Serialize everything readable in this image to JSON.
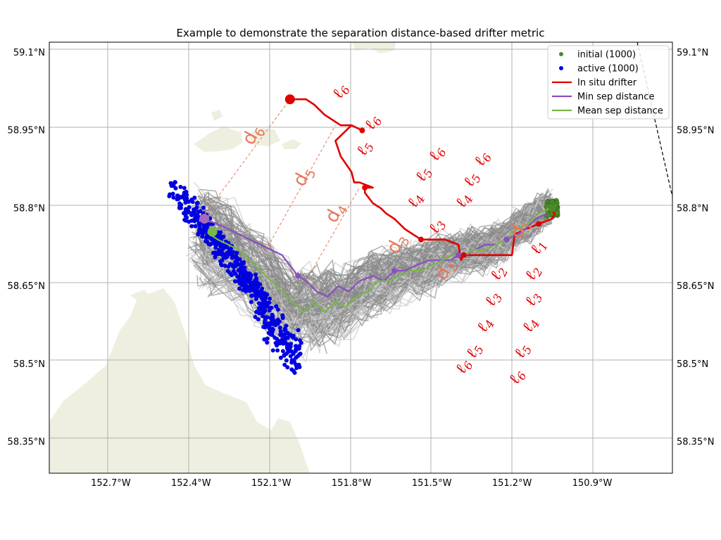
{
  "chart_data": {
    "type": "scatter",
    "title": "Example to demonstrate the separation distance-based drifter metric",
    "xlabel": "",
    "ylabel": "",
    "xlim": [
      -152.93,
      -150.6
    ],
    "ylim": [
      58.29,
      59.12
    ],
    "x_ticks": [
      -152.7,
      -152.4,
      -152.1,
      -151.8,
      -151.5,
      -151.2,
      -150.9
    ],
    "x_tick_labels": [
      "152.7°W",
      "152.4°W",
      "152.1°W",
      "151.8°W",
      "151.5°W",
      "151.2°W",
      "150.9°W"
    ],
    "y_ticks": [
      58.35,
      58.5,
      58.65,
      58.8,
      58.95,
      59.1
    ],
    "y_tick_labels": [
      "58.35°N",
      "58.5°N",
      "58.65°N",
      "58.8°N",
      "58.95°N",
      "59.1°N"
    ],
    "grid": true,
    "legend_position": "top-right",
    "legend": [
      {
        "label": "initial (1000)",
        "marker": "dot",
        "color": "#4a8a2a"
      },
      {
        "label": "active (1000)",
        "marker": "dot",
        "color": "#0000e0"
      },
      {
        "label": "In situ drifter",
        "marker": "line",
        "color": "#e00000"
      },
      {
        "label": "Min sep distance",
        "marker": "line",
        "color": "#8a4fbf"
      },
      {
        "label": "Mean sep distance",
        "marker": "line",
        "color": "#7ab648"
      }
    ],
    "series": [
      {
        "name": "In situ drifter",
        "color": "#e00000",
        "lon": [
          -151.06,
          -151.04,
          -151.05,
          -151.1,
          -151.15,
          -151.19,
          -151.2,
          -151.23,
          -151.3,
          -151.38,
          -151.39,
          -151.4,
          -151.45,
          -151.54,
          -151.6,
          -151.64,
          -151.67,
          -151.69,
          -151.72,
          -151.75,
          -151.75,
          -151.72,
          -151.77,
          -151.79,
          -151.8,
          -151.84,
          -151.86,
          -151.8,
          -151.76,
          -151.8,
          -151.84,
          -151.9,
          -151.94,
          -151.97,
          -152.0,
          -152.04
        ],
        "lat": [
          58.8,
          58.79,
          58.78,
          58.77,
          58.76,
          58.75,
          58.71,
          58.71,
          58.71,
          58.71,
          58.7,
          58.73,
          58.74,
          58.74,
          58.76,
          58.78,
          58.79,
          58.8,
          58.81,
          58.83,
          58.84,
          58.84,
          58.85,
          58.85,
          58.87,
          58.9,
          58.93,
          58.96,
          58.95,
          58.96,
          58.96,
          58.98,
          59.0,
          59.01,
          59.01,
          59.01
        ]
      },
      {
        "name": "Min sep distance",
        "color": "#8a4fbf",
        "lon": [
          -151.07,
          -151.11,
          -151.15,
          -151.18,
          -151.22,
          -151.26,
          -151.3,
          -151.34,
          -151.37,
          -151.4,
          -151.43,
          -151.47,
          -151.51,
          -151.56,
          -151.6,
          -151.64,
          -151.68,
          -151.72,
          -151.77,
          -151.81,
          -151.85,
          -151.89,
          -151.93,
          -151.97,
          -152.0,
          -152.03,
          -152.06,
          -152.1,
          -152.14,
          -152.18,
          -152.22,
          -152.26,
          -152.3,
          -152.36
        ],
        "lat": [
          58.79,
          58.78,
          58.76,
          58.75,
          58.74,
          58.73,
          58.73,
          58.72,
          58.71,
          58.71,
          58.7,
          58.7,
          58.7,
          58.69,
          58.68,
          58.68,
          58.66,
          58.67,
          58.66,
          58.64,
          58.65,
          58.63,
          58.64,
          58.66,
          58.67,
          58.69,
          58.71,
          58.72,
          58.73,
          58.74,
          58.75,
          58.76,
          58.77,
          58.78
        ]
      },
      {
        "name": "Mean sep distance",
        "color": "#7ab648",
        "lon": [
          -151.06,
          -151.1,
          -151.14,
          -151.18,
          -151.22,
          -151.26,
          -151.3,
          -151.34,
          -151.38,
          -151.42,
          -151.46,
          -151.5,
          -151.54,
          -151.58,
          -151.62,
          -151.66,
          -151.7,
          -151.74,
          -151.78,
          -151.82,
          -151.86,
          -151.9,
          -151.94,
          -151.98,
          -152.02,
          -152.06,
          -152.1,
          -152.14,
          -152.18,
          -152.22,
          -152.26,
          -152.3,
          -152.33
        ],
        "lat": [
          58.8,
          58.79,
          58.77,
          58.76,
          58.74,
          58.73,
          58.72,
          58.72,
          58.71,
          58.71,
          58.7,
          58.69,
          58.68,
          58.68,
          58.67,
          58.66,
          58.66,
          58.64,
          58.63,
          58.61,
          58.62,
          58.6,
          58.62,
          58.6,
          58.62,
          58.64,
          58.66,
          58.68,
          58.7,
          58.72,
          58.73,
          58.74,
          58.75
        ]
      }
    ],
    "markers": [
      {
        "name": "drifter-start",
        "lon": -151.05,
        "lat": 58.8,
        "color": "#4a8a2a"
      },
      {
        "name": "drifter-end",
        "lon": -152.03,
        "lat": 59.01,
        "color": "#e00000"
      },
      {
        "name": "min-sep-end",
        "lon": -152.35,
        "lat": 58.78,
        "color": "#a569bd"
      },
      {
        "name": "mean-sep-end",
        "lon": -152.32,
        "lat": 58.755,
        "color": "#7ab648"
      }
    ],
    "separation_segments": [
      {
        "label": "d",
        "sub": "6",
        "from": [
          -152.36,
          58.78
        ],
        "to": [
          -152.03,
          59.01
        ]
      },
      {
        "label": "d",
        "sub": "5",
        "from": [
          -152.13,
          58.71
        ],
        "to": [
          -151.86,
          58.96
        ]
      },
      {
        "label": "d",
        "sub": "4",
        "from": [
          -151.97,
          58.66
        ],
        "to": [
          -151.77,
          58.84
        ]
      },
      {
        "label": "d",
        "sub": "3",
        "from": [
          -151.6,
          58.7
        ],
        "to": [
          -151.6,
          58.7
        ]
      },
      {
        "label": "d",
        "sub": "2",
        "from": [
          -151.4,
          58.68
        ],
        "to": [
          -151.4,
          58.68
        ]
      },
      {
        "label": "d",
        "sub": "1",
        "from": [
          -151.14,
          58.74
        ],
        "to": [
          -151.14,
          58.74
        ]
      }
    ],
    "ell_labels": [
      {
        "text": "ℓ6",
        "lon": -151.84,
        "lat": 59.01
      },
      {
        "text": "ℓ6",
        "lon": -151.72,
        "lat": 58.95
      },
      {
        "text": "ℓ5",
        "lon": -151.75,
        "lat": 58.9
      },
      {
        "text": "ℓ6",
        "lon": -151.48,
        "lat": 58.89
      },
      {
        "text": "ℓ5",
        "lon": -151.53,
        "lat": 58.85
      },
      {
        "text": "ℓ4",
        "lon": -151.56,
        "lat": 58.8
      },
      {
        "text": "ℓ3",
        "lon": -151.48,
        "lat": 58.75
      },
      {
        "text": "ℓ6",
        "lon": -151.31,
        "lat": 58.88
      },
      {
        "text": "ℓ5",
        "lon": -151.35,
        "lat": 58.84
      },
      {
        "text": "ℓ4",
        "lon": -151.38,
        "lat": 58.8
      },
      {
        "text": "ℓ1",
        "lon": -151.1,
        "lat": 58.71
      },
      {
        "text": "ℓ2",
        "lon": -151.12,
        "lat": 58.66
      },
      {
        "text": "ℓ3",
        "lon": -151.12,
        "lat": 58.61
      },
      {
        "text": "ℓ4",
        "lon": -151.13,
        "lat": 58.56
      },
      {
        "text": "ℓ5",
        "lon": -151.16,
        "lat": 58.51
      },
      {
        "text": "ℓ6",
        "lon": -151.18,
        "lat": 58.46
      },
      {
        "text": "ℓ2",
        "lon": -151.25,
        "lat": 58.66
      },
      {
        "text": "ℓ3",
        "lon": -151.27,
        "lat": 58.61
      },
      {
        "text": "ℓ4",
        "lon": -151.3,
        "lat": 58.56
      },
      {
        "text": "ℓ5",
        "lon": -151.34,
        "lat": 58.51
      },
      {
        "text": "ℓ6",
        "lon": -151.38,
        "lat": 58.48
      }
    ]
  }
}
